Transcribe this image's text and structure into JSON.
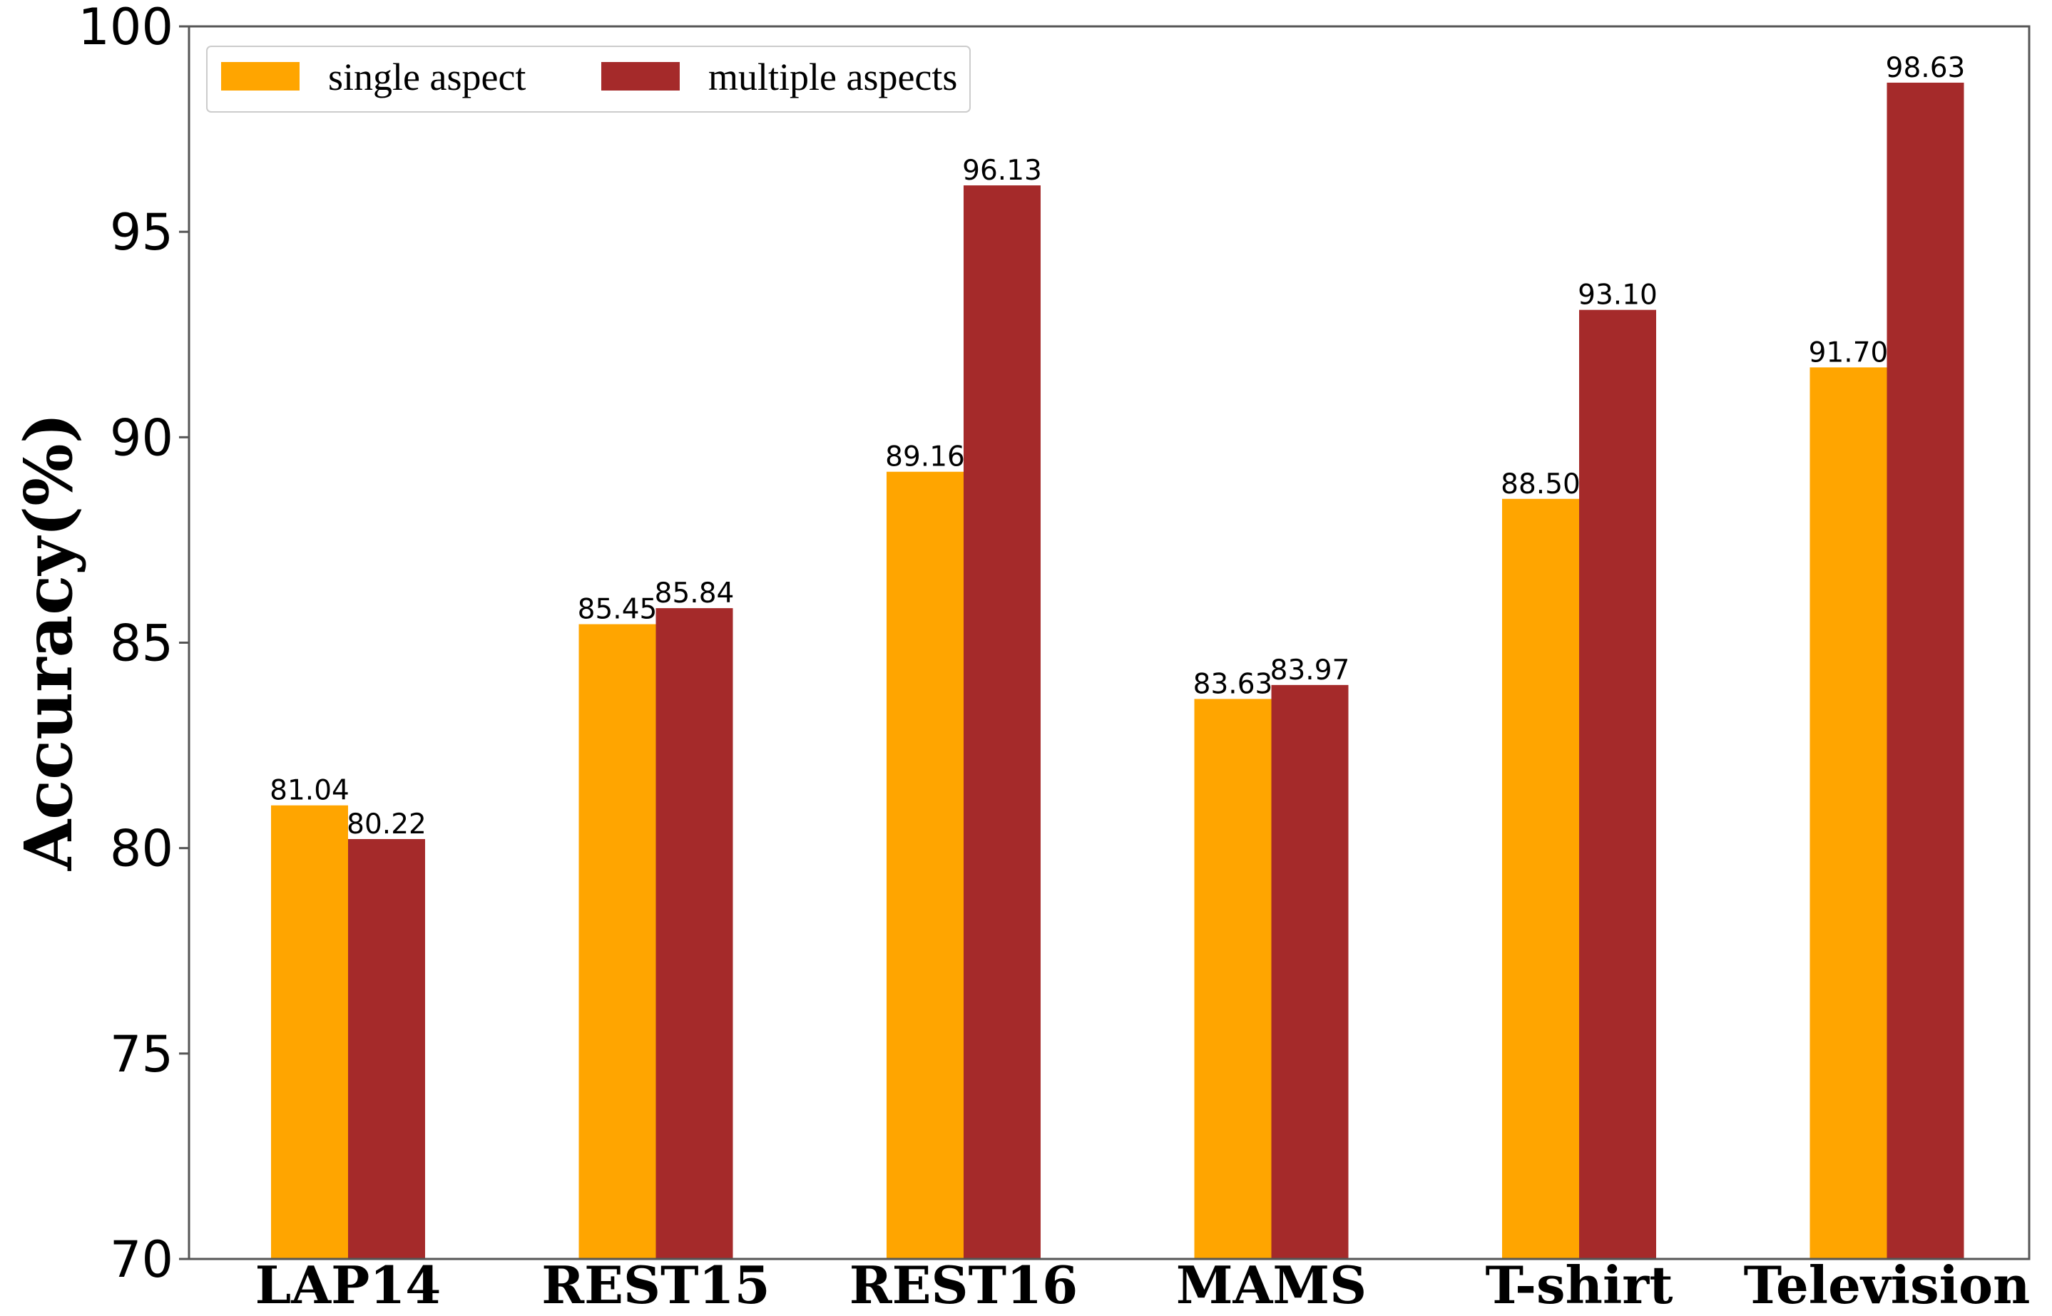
{
  "chart_data": {
    "type": "bar",
    "title": "",
    "xlabel": "",
    "ylabel": "Accuracy(%)",
    "ylim": [
      70,
      100
    ],
    "yticks": [
      "70",
      "75",
      "80",
      "85",
      "90",
      "95",
      "100"
    ],
    "categories": [
      "LAP14",
      "REST15",
      "REST16",
      "MAMS",
      "T-shirt",
      "Television"
    ],
    "series": [
      {
        "name": "single aspect",
        "color": "#FFA500",
        "values": [
          81.04,
          85.45,
          89.16,
          83.63,
          88.5,
          91.7
        ],
        "labels": [
          "81.04",
          "85.45",
          "89.16",
          "83.63",
          "88.50",
          "91.70"
        ]
      },
      {
        "name": "multiple aspects",
        "color": "#A52A2A",
        "values": [
          80.22,
          85.84,
          96.13,
          83.97,
          93.1,
          98.63
        ],
        "labels": [
          "80.22",
          "85.84",
          "96.13",
          "83.97",
          "93.10",
          "98.63"
        ]
      }
    ],
    "legend": "top-left",
    "grid": false
  }
}
